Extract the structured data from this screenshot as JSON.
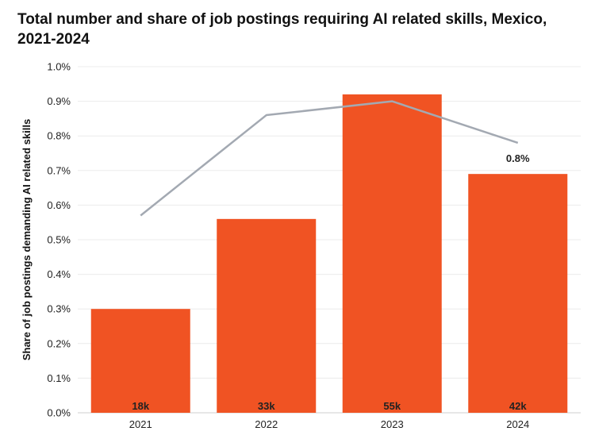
{
  "title": "Total number and share of job postings requiring AI related skills, Mexico, 2021-2024",
  "chart_data": {
    "type": "bar",
    "categories": [
      "2021",
      "2022",
      "2023",
      "2024"
    ],
    "values": [
      0.3,
      0.56,
      0.92,
      0.69
    ],
    "count_labels": [
      "18k",
      "33k",
      "55k",
      "42k"
    ],
    "line_series": {
      "type": "line",
      "values": [
        0.57,
        0.86,
        0.9,
        0.78
      ],
      "color": "#a3a9b2",
      "point_labels": [
        "",
        "",
        "",
        "0.8%"
      ]
    },
    "xlabel": "",
    "ylabel": "Share of job postings demanding AI related skills",
    "ylim": [
      0,
      1.0
    ],
    "yticks": [
      "0.0%",
      "0.1%",
      "0.2%",
      "0.3%",
      "0.4%",
      "0.5%",
      "0.6%",
      "0.7%",
      "0.8%",
      "0.9%",
      "1.0%"
    ],
    "grid": true,
    "bar_color": "#f05323"
  }
}
